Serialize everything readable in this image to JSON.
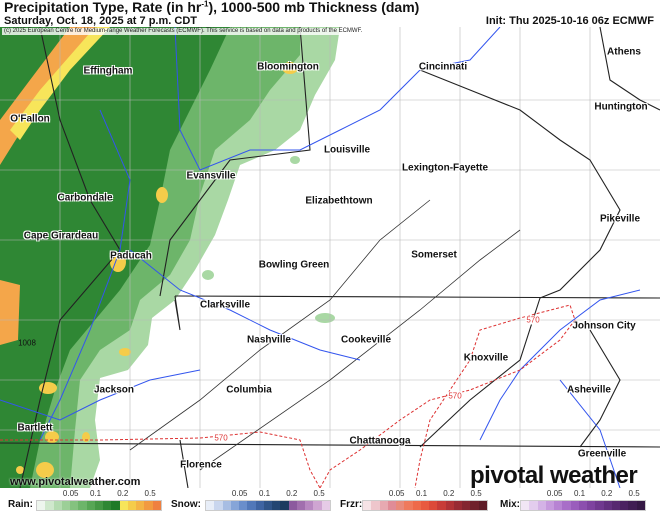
{
  "header": {
    "title_main": "Precipitation Type, Rate (in hr",
    "title_sup": "-1",
    "title_rest": "), 1000-500 mb Thickness (dam)",
    "subtitle": "Saturday, Oct. 18, 2025 at 7 p.m. CDT",
    "init": "Init: Thu 2025-10-16 06z ECMWF"
  },
  "copyright": "(c) 2025 European Centre for Medium-range Weather Forecasts (ECMWF). This service is based on data and products of the ECMWF.",
  "cities": [
    "Athens",
    "Cincinnati",
    "Bloomington",
    "Effingham",
    "O'Fallon",
    "Huntington",
    "Louisville",
    "Lexington-Fayette",
    "Evansville",
    "Carbondale",
    "Elizabethtown",
    "Pikeville",
    "Cape Girardeau",
    "Paducah",
    "Somerset",
    "Bowling Green",
    "Clarksville",
    "Johnson City",
    "Nashville",
    "Cookeville",
    "Knoxville",
    "Jackson",
    "Columbia",
    "Asheville",
    "Bartlett",
    "Chattanooga",
    "Florence",
    "Greenville"
  ],
  "contour_labels": [
    "570",
    "570",
    "570",
    "1008"
  ],
  "watermark_url": "www.pivotalweather.com",
  "logo": "pivotal weather",
  "legend": [
    {
      "name": "Rain:",
      "ticks": [
        "0.05",
        "0.1",
        "0.2",
        "0.5"
      ],
      "colors": [
        "#eef6ee",
        "#cfe8cc",
        "#b4dbb0",
        "#9ccf97",
        "#84c27f",
        "#6db56a",
        "#57a655",
        "#449744",
        "#2f8734",
        "#1f7a28",
        "#f7e55a",
        "#f5cc4a",
        "#f4b445",
        "#f29a40",
        "#ef8040"
      ]
    },
    {
      "name": "Snow:",
      "ticks": [
        "0.05",
        "0.1",
        "0.2",
        "0.5"
      ],
      "colors": [
        "#e8eef8",
        "#c9d6ee",
        "#a7bde3",
        "#86a5d8",
        "#6a8ecb",
        "#5278b9",
        "#3f64a2",
        "#305488",
        "#244672",
        "#1d3b5f",
        "#8c5a9e",
        "#a16fae",
        "#b888c1",
        "#cfa5d2",
        "#e6cbe7"
      ]
    },
    {
      "name": "Frzr:",
      "ticks": [
        "0.05",
        "0.1",
        "0.2",
        "0.5"
      ],
      "colors": [
        "#f6e3e6",
        "#eec6cc",
        "#e7a9b1",
        "#e08c97",
        "#e98a7a",
        "#ef7a5c",
        "#ee6a4a",
        "#e85a40",
        "#dc4a3a",
        "#c83c38",
        "#b03236",
        "#982a33",
        "#832630",
        "#70212c",
        "#5e1c27"
      ]
    },
    {
      "name": "Mix:",
      "ticks": [
        "0.05",
        "0.1",
        "0.2",
        "0.5"
      ],
      "colors": [
        "#f1e6f5",
        "#e3cdee",
        "#d4b3e6",
        "#c69add",
        "#b783d3",
        "#a86ec8",
        "#9a5dbc",
        "#8c4fae",
        "#7e439f",
        "#70398f",
        "#63307f",
        "#572870",
        "#4b2261",
        "#401d53",
        "#351845"
      ]
    }
  ],
  "colors": {
    "rain_green": "#3a8e3c",
    "rain_light": "#a9d8a4",
    "rain_orange": "#f4a64a",
    "border": "#222222",
    "river": "#3355ee",
    "county": "#aaaaaa",
    "contour": "#dd3333"
  }
}
